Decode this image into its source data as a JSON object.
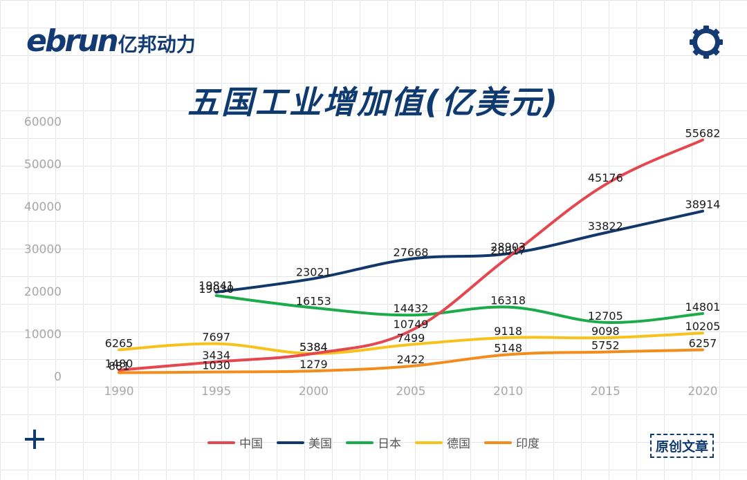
{
  "brand": {
    "logo_en": "ebrun",
    "logo_cn": "亿邦动力"
  },
  "badge": "原创文章",
  "icons": {
    "top_right": "gear-icon",
    "bottom_left": "plus-icon"
  },
  "chart_data": {
    "type": "line",
    "title": "五国工业增加值(亿美元)",
    "xlabel": "",
    "ylabel": "",
    "x": [
      1990,
      1995,
      2000,
      2005,
      2010,
      2015,
      2020
    ],
    "x_tick_labels": [
      "1990",
      "1995",
      "2000",
      "2005",
      "2010",
      "2015",
      "2020"
    ],
    "ylim": [
      0,
      60000
    ],
    "y_ticks": [
      0,
      10000,
      20000,
      30000,
      40000,
      50000,
      60000
    ],
    "y_tick_labels": [
      "0",
      "10000",
      "20000",
      "30000",
      "40000",
      "50000",
      "60000"
    ],
    "grid": true,
    "legend_position": "bottom-center",
    "series": [
      {
        "name": "中国",
        "color": "#e4474f",
        "values": [
          1480,
          3434,
          5384,
          10749,
          28017,
          45176,
          55682
        ]
      },
      {
        "name": "美国",
        "color": "#12386b",
        "values": [
          null,
          19841,
          23021,
          27668,
          28903,
          33822,
          38914
        ]
      },
      {
        "name": "日本",
        "color": "#1cab4b",
        "values": [
          null,
          19030,
          16153,
          14432,
          16318,
          12705,
          14801
        ]
      },
      {
        "name": "德国",
        "color": "#f6c21b",
        "values": [
          6265,
          7697,
          5384,
          7499,
          9118,
          9098,
          10205
        ]
      },
      {
        "name": "印度",
        "color": "#f28c1a",
        "values": [
          881,
          1030,
          1279,
          2422,
          5148,
          5752,
          6257
        ]
      }
    ]
  }
}
